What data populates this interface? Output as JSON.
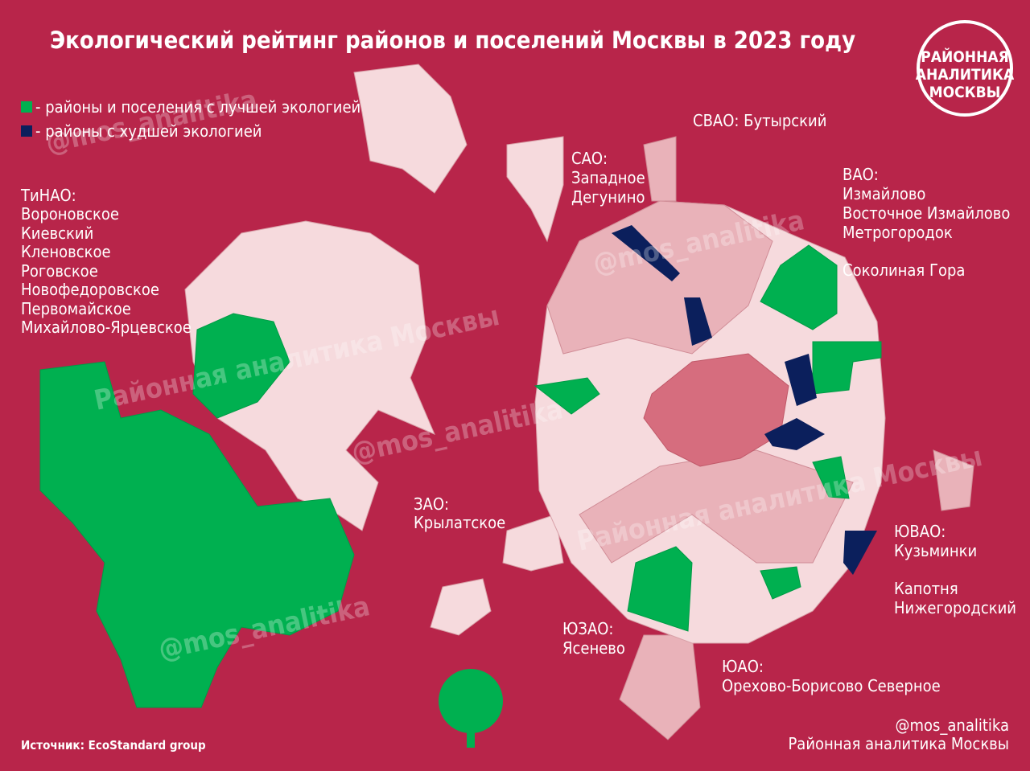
{
  "title": "Экологический рейтинг районов и поселений Москвы в 2023 году",
  "legend": [
    {
      "label": "- районы и поселения с лучшей экологией",
      "color": "#00b050"
    },
    {
      "label": "- районы с худшей экологией",
      "color": "#0b1f5c"
    }
  ],
  "logo": [
    "РАЙОННАЯ",
    "АНАЛИТИКА",
    "МОСКВЫ"
  ],
  "annotations": {
    "tinao": {
      "heading": "ТиНАО:",
      "districts": [
        "Вороновское",
        "Киевский",
        "Кленовское",
        "Роговское",
        "Новофедоровское",
        "Первомайское",
        "Михайлово-Ярцевское"
      ]
    },
    "sao": {
      "heading": "САО:",
      "districts": [
        "Западное",
        "Дегунино"
      ]
    },
    "svao": {
      "heading": "СВАО:",
      "districts": [
        "Бутырский"
      ]
    },
    "vao": {
      "heading": "ВАО:",
      "districts": [
        "Измайлово",
        "Восточное Измайлово",
        "Метрогородок",
        "Соколиная Гора"
      ]
    },
    "zao": {
      "heading": "ЗАО:",
      "districts": [
        "Крылатское"
      ]
    },
    "yuvao": {
      "heading": "ЮВАО:",
      "districts": [
        "Кузьминки",
        "Капотня",
        "Нижегородский"
      ]
    },
    "yuzao": {
      "heading": "ЮЗАО:",
      "districts": [
        "Ясенево"
      ]
    },
    "yuao": {
      "heading": "ЮАО:",
      "districts": [
        "Орехово-Борисово Северное"
      ]
    }
  },
  "watermarks": [
    "@mos_analitika",
    "Районная аналитика Москвы"
  ],
  "source": "Источник: EcoStandard group",
  "footer": [
    "@mos_analitika",
    "Районная аналитика Москвы"
  ]
}
